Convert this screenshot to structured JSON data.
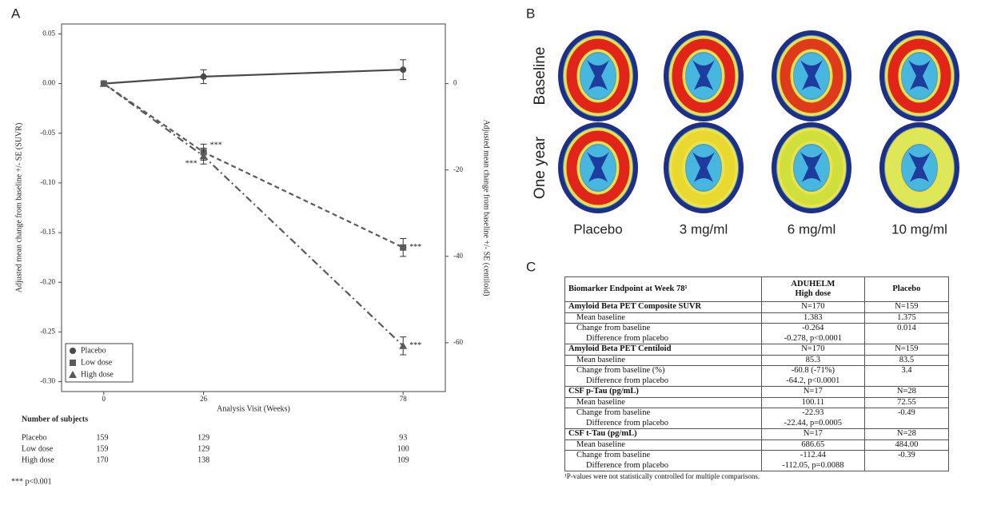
{
  "panel_labels": [
    "A",
    "B",
    "C"
  ],
  "chart_data": {
    "type": "line",
    "y_label": "Adjusted mean change from baseline +/- SE (SUVR)",
    "y2_label": "Adjusted mean change from baseline +/- SE (centiloid)",
    "x_label": "Analysis Visit (Weeks)",
    "x": [
      0,
      26,
      78
    ],
    "xlim": [
      -11,
      89
    ],
    "xticks": [
      0,
      26,
      78
    ],
    "ylim": [
      -0.31,
      0.06
    ],
    "yticks": [
      0.05,
      {
        "value": 0,
        "label": "0.00"
      },
      -0.05,
      {
        "value": -0.1,
        "label": "-0.10"
      },
      -0.15,
      {
        "value": -0.2,
        "label": "-0.20"
      },
      -0.25,
      {
        "value": -0.3,
        "label": "-0.30"
      }
    ],
    "y2lim": [
      -71.3,
      13.8
    ],
    "y2ticks": [
      -60,
      -40,
      -20,
      0
    ],
    "legend": "lower left",
    "series": [
      {
        "name": "Placebo",
        "color": "#4a4a4a",
        "marker": "circle",
        "line_style": "solid",
        "values": [
          0,
          0.007,
          0.014
        ],
        "errors": [
          null,
          0.007,
          0.01
        ]
      },
      {
        "name": "Low dose",
        "color": "#5a5a5a",
        "marker": "square",
        "line_style": "dashed",
        "values": [
          0,
          -0.069,
          -0.165
        ],
        "errors": [
          null,
          0.008,
          0.009
        ],
        "annotations": [
          null,
          "***",
          "***"
        ]
      },
      {
        "name": "High dose",
        "color": "#5a5a5a",
        "marker": "triangle",
        "line_style": "dashdot",
        "values": [
          0,
          -0.073,
          -0.264
        ],
        "errors": [
          null,
          0.008,
          0.009
        ],
        "annotations": [
          null,
          "***",
          "***"
        ]
      }
    ],
    "subjects": {
      "title": "Number of subjects",
      "rows": [
        [
          "Placebo",
          159,
          129,
          93
        ],
        [
          "Low dose",
          159,
          129,
          100
        ],
        [
          "High dose",
          170,
          138,
          109
        ]
      ]
    },
    "footnote": "*** p<0.001"
  },
  "panel_b": {
    "rows": [
      "Baseline",
      "One year"
    ],
    "columns": [
      "Placebo",
      "3 mg/ml",
      "6 mg/ml",
      "10 mg/ml"
    ]
  },
  "table": {
    "header": [
      [
        "Biomarker Endpoint at Week 78¹"
      ],
      [
        "ADUHELM",
        "High dose"
      ],
      [
        "Placebo"
      ]
    ],
    "sections": [
      {
        "header": [
          "Amyloid Beta PET Composite SUVR",
          "N=170",
          "N=159"
        ],
        "rows": [
          [
            [
              "Mean baseline"
            ],
            [
              "1.383"
            ],
            [
              "1.375"
            ]
          ],
          [
            [
              "Change from baseline",
              "Difference from placebo"
            ],
            [
              "-0.264",
              "-0.278, p<0.0001"
            ],
            [
              "0.014"
            ]
          ]
        ]
      },
      {
        "header": [
          "Amyloid Beta PET Centiloid",
          "N=170",
          "N=159"
        ],
        "rows": [
          [
            [
              "Mean baseline"
            ],
            [
              "85.3"
            ],
            [
              "83.5"
            ]
          ],
          [
            [
              "Change from baseline (%)",
              "Difference from placebo"
            ],
            [
              "-60.8 (-71%)",
              "-64.2, p<0.0001"
            ],
            [
              "3.4"
            ]
          ]
        ]
      },
      {
        "header": [
          "CSF p-Tau (pg/mL)",
          "N=17",
          "N=28"
        ],
        "rows": [
          [
            [
              "Mean baseline"
            ],
            [
              "100.11"
            ],
            [
              "72.55"
            ]
          ],
          [
            [
              "Change from baseline",
              "Difference from placebo"
            ],
            [
              "-22.93",
              "-22.44, p=0.0005"
            ],
            [
              "-0.49"
            ]
          ]
        ]
      },
      {
        "header": [
          "CSF t-Tau (pg/mL)",
          "N=17",
          "N=28"
        ],
        "rows": [
          [
            [
              "Mean baseline"
            ],
            [
              "686.65"
            ],
            [
              "484.00"
            ]
          ],
          [
            [
              "Change from baseline",
              "Difference from placebo"
            ],
            [
              "-112.44",
              "-112.05, p=0.0088"
            ],
            [
              "-0.39"
            ]
          ]
        ]
      }
    ],
    "footnote": "¹P-values were not statistically controlled for multiple comparisons."
  }
}
